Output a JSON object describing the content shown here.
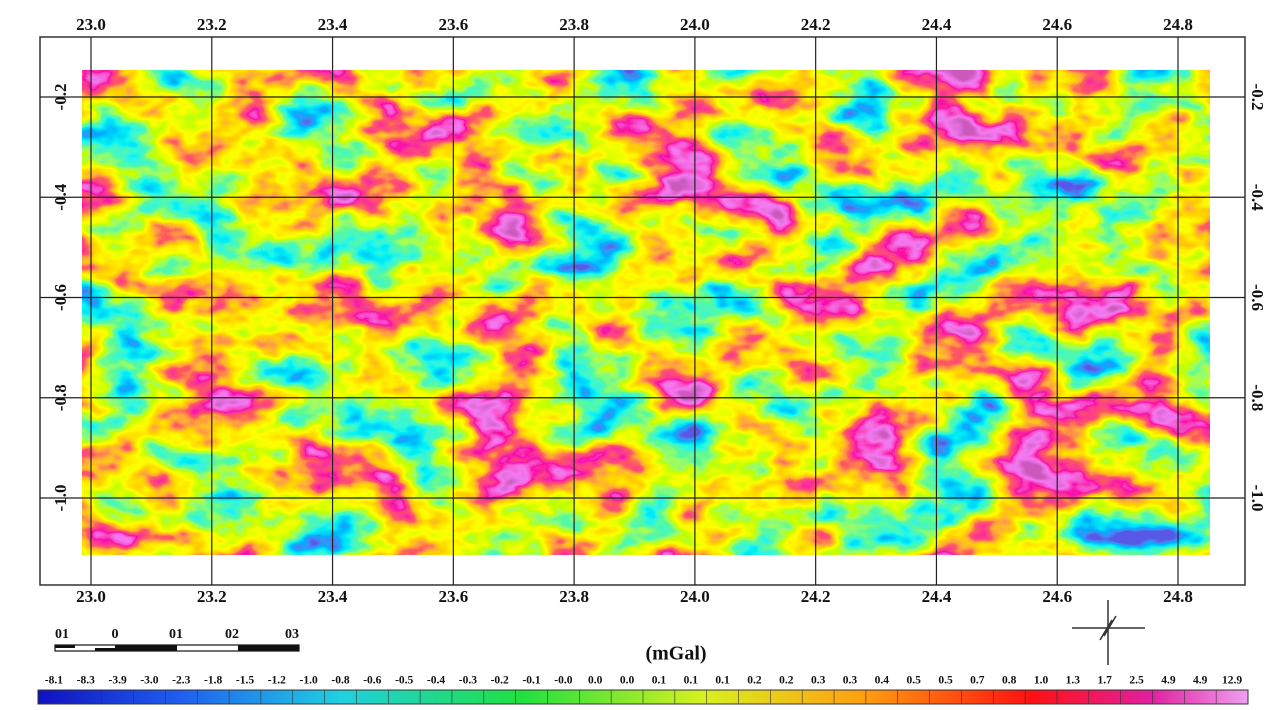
{
  "map": {
    "xticks": [
      {
        "value": 23.0,
        "label": "23.0"
      },
      {
        "value": 23.2,
        "label": "23.2"
      },
      {
        "value": 23.4,
        "label": "23.4"
      },
      {
        "value": 23.6,
        "label": "23.6"
      },
      {
        "value": 23.8,
        "label": "23.8"
      },
      {
        "value": 24.0,
        "label": "24.0"
      },
      {
        "value": 24.2,
        "label": "24.2"
      },
      {
        "value": 24.4,
        "label": "24.4"
      },
      {
        "value": 24.6,
        "label": "24.6"
      },
      {
        "value": 24.8,
        "label": "24.8"
      }
    ],
    "yticks": [
      {
        "value": -0.2,
        "label": "-0.2"
      },
      {
        "value": -0.4,
        "label": "-0.4"
      },
      {
        "value": -0.6,
        "label": "-0.6"
      },
      {
        "value": -0.8,
        "label": "-0.8"
      },
      {
        "value": -1.0,
        "label": "-1.0"
      }
    ],
    "scale_bar": [
      "01",
      "0",
      "01",
      "02",
      "03"
    ],
    "unit": "(mGal)",
    "legend_labels": [
      "-8.1",
      "-8.3",
      "-3.9",
      "-3.0",
      "-2.3",
      "-1.8",
      "-1.5",
      "-1.2",
      "-1.0",
      "-0.8",
      "-0.6",
      "-0.5",
      "-0.4",
      "-0.3",
      "-0.2",
      "-0.1",
      "-0.0",
      "0.0",
      "0.0",
      "0.1",
      "0.1",
      "0.1",
      "0.2",
      "0.2",
      "0.3",
      "0.3",
      "0.4",
      "0.5",
      "0.5",
      "0.7",
      "0.8",
      "1.0",
      "1.3",
      "1.7",
      "2.5",
      "4.9",
      "4.9",
      "12.9"
    ]
  }
}
